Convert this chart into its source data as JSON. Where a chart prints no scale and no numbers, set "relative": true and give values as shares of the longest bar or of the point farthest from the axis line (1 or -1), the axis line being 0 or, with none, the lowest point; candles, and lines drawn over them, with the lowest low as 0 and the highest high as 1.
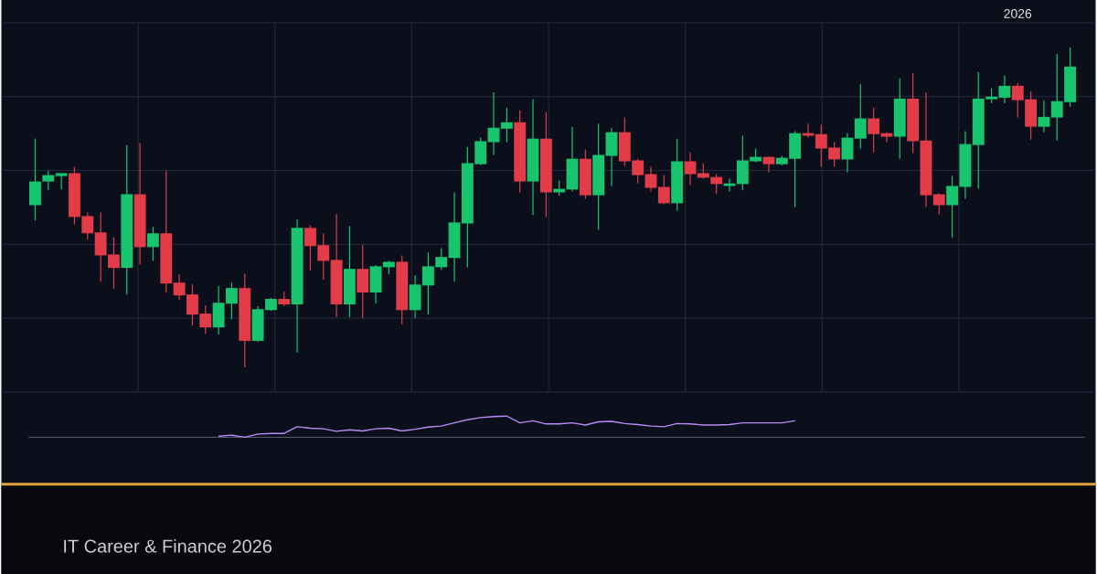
{
  "chart_data": [
    {
      "type": "candlestick",
      "relative": true,
      "grid": true,
      "categories": [
        null,
        null,
        null,
        null,
        null,
        null,
        null,
        null,
        null,
        null,
        null,
        null,
        null,
        null,
        null,
        null,
        null,
        null,
        null,
        null,
        null,
        null,
        null,
        null,
        null,
        null,
        null,
        null,
        null,
        null,
        null,
        null,
        null,
        null,
        null,
        null,
        null,
        null,
        null,
        null,
        null,
        null,
        null,
        null,
        null,
        null,
        null,
        null,
        null,
        null,
        null,
        null,
        null,
        null,
        null,
        null,
        null,
        null,
        null,
        null,
        null,
        null,
        null,
        null,
        null,
        null,
        null,
        null,
        null,
        null,
        null,
        null,
        null,
        null,
        null,
        "2026",
        null,
        null,
        null,
        null
      ],
      "ohlc": [
        [
          0.507,
          0.715,
          0.459,
          0.581
        ],
        [
          0.581,
          0.615,
          0.553,
          0.601
        ],
        [
          0.598,
          0.607,
          0.556,
          0.607
        ],
        [
          0.607,
          0.627,
          0.447,
          0.47
        ],
        [
          0.473,
          0.484,
          0.399,
          0.419
        ],
        [
          0.422,
          0.484,
          0.268,
          0.35
        ],
        [
          0.353,
          0.407,
          0.245,
          0.311
        ],
        [
          0.311,
          0.695,
          0.228,
          0.541
        ],
        [
          0.541,
          0.701,
          0.322,
          0.376
        ],
        [
          0.376,
          0.439,
          0.333,
          0.419
        ],
        [
          0.419,
          0.615,
          0.234,
          0.262
        ],
        [
          0.265,
          0.291,
          0.211,
          0.225
        ],
        [
          0.228,
          0.259,
          0.131,
          0.165
        ],
        [
          0.168,
          0.194,
          0.105,
          0.125
        ],
        [
          0.125,
          0.254,
          0.103,
          0.202
        ],
        [
          0.199,
          0.265,
          0.151,
          0.248
        ],
        [
          0.248,
          0.293,
          0.0,
          0.083
        ],
        [
          0.083,
          0.191,
          0.08,
          0.182
        ],
        [
          0.179,
          0.217,
          0.177,
          0.214
        ],
        [
          0.214,
          0.236,
          0.191,
          0.197
        ],
        [
          0.197,
          0.462,
          0.046,
          0.436
        ],
        [
          0.436,
          0.444,
          0.302,
          0.379
        ],
        [
          0.382,
          0.419,
          0.274,
          0.333
        ],
        [
          0.336,
          0.479,
          0.157,
          0.197
        ],
        [
          0.197,
          0.442,
          0.157,
          0.308
        ],
        [
          0.308,
          0.382,
          0.154,
          0.234
        ],
        [
          0.234,
          0.319,
          0.199,
          0.316
        ],
        [
          0.313,
          0.333,
          0.291,
          0.33
        ],
        [
          0.33,
          0.35,
          0.134,
          0.179
        ],
        [
          0.179,
          0.288,
          0.154,
          0.259
        ],
        [
          0.256,
          0.359,
          0.165,
          0.316
        ],
        [
          0.313,
          0.373,
          0.305,
          0.345
        ],
        [
          0.342,
          0.547,
          0.268,
          0.453
        ],
        [
          0.45,
          0.689,
          0.313,
          0.638
        ],
        [
          0.635,
          0.718,
          0.632,
          0.707
        ],
        [
          0.704,
          0.86,
          0.664,
          0.749
        ],
        [
          0.746,
          0.812,
          0.704,
          0.766
        ],
        [
          0.766,
          0.803,
          0.547,
          0.581
        ],
        [
          0.581,
          0.838,
          0.476,
          0.715
        ],
        [
          0.715,
          0.798,
          0.47,
          0.547
        ],
        [
          0.547,
          0.584,
          0.536,
          0.558
        ],
        [
          0.556,
          0.752,
          0.55,
          0.652
        ],
        [
          0.652,
          0.681,
          0.527,
          0.538
        ],
        [
          0.538,
          0.761,
          0.43,
          0.664
        ],
        [
          0.661,
          0.749,
          0.567,
          0.735
        ],
        [
          0.735,
          0.781,
          0.63,
          0.644
        ],
        [
          0.647,
          0.652,
          0.575,
          0.601
        ],
        [
          0.604,
          0.627,
          0.55,
          0.561
        ],
        [
          0.564,
          0.601,
          0.51,
          0.513
        ],
        [
          0.513,
          0.715,
          0.49,
          0.644
        ],
        [
          0.644,
          0.672,
          0.57,
          0.604
        ],
        [
          0.607,
          0.638,
          0.59,
          0.593
        ],
        [
          0.595,
          0.604,
          0.541,
          0.573
        ],
        [
          0.567,
          0.59,
          0.55,
          0.575
        ],
        [
          0.573,
          0.724,
          0.553,
          0.647
        ],
        [
          0.644,
          0.684,
          0.641,
          0.658
        ],
        [
          0.658,
          0.658,
          0.61,
          0.635
        ],
        [
          0.635,
          0.661,
          0.632,
          0.655
        ],
        [
          0.652,
          0.738,
          0.501,
          0.732
        ],
        [
          0.732,
          0.761,
          0.718,
          0.724
        ],
        [
          0.729,
          0.758,
          0.627,
          0.684
        ],
        [
          0.687,
          0.704,
          0.627,
          0.65
        ],
        [
          0.65,
          0.732,
          0.61,
          0.718
        ],
        [
          0.715,
          0.886,
          0.684,
          0.778
        ],
        [
          0.778,
          0.812,
          0.672,
          0.729
        ],
        [
          0.732,
          0.735,
          0.704,
          0.721
        ],
        [
          0.721,
          0.903,
          0.652,
          0.84
        ],
        [
          0.84,
          0.92,
          0.67,
          0.707
        ],
        [
          0.709,
          0.86,
          0.501,
          0.538
        ],
        [
          0.541,
          0.544,
          0.479,
          0.507
        ],
        [
          0.507,
          0.598,
          0.405,
          0.567
        ],
        [
          0.564,
          0.738,
          0.527,
          0.698
        ],
        [
          0.695,
          0.923,
          0.558,
          0.84
        ],
        [
          0.838,
          0.872,
          0.826,
          0.846
        ],
        [
          0.843,
          0.912,
          0.826,
          0.88
        ],
        [
          0.88,
          0.889,
          0.781,
          0.835
        ],
        [
          0.838,
          0.863,
          0.712,
          0.752
        ],
        [
          0.752,
          0.835,
          0.735,
          0.783
        ],
        [
          0.781,
          0.98,
          0.709,
          0.832
        ],
        [
          0.829,
          1.0,
          0.815,
          0.94
        ]
      ],
      "annotations": [
        "IT Career & Finance 2026"
      ]
    },
    {
      "type": "line",
      "relative": true,
      "categories": [
        null,
        null,
        null,
        null,
        null,
        null,
        null,
        null,
        null,
        null,
        null,
        null,
        null,
        null,
        null,
        null,
        null,
        null,
        null,
        null,
        null,
        null,
        null,
        null,
        null,
        null,
        null,
        null,
        null,
        null,
        null,
        null,
        null,
        null,
        null,
        null,
        null,
        null,
        null,
        null,
        null,
        null,
        null,
        null,
        null,
        null,
        null,
        null,
        null,
        null,
        null,
        null,
        null,
        null,
        null,
        null,
        null,
        null,
        null,
        null,
        null,
        null,
        null,
        null,
        null,
        null,
        null,
        null,
        null,
        null,
        null,
        null,
        null,
        null,
        null,
        null,
        null,
        null,
        null,
        null
      ],
      "series": [
        {
          "color": "#b98cf5",
          "values": [
            null,
            null,
            null,
            null,
            null,
            null,
            null,
            null,
            null,
            null,
            null,
            null,
            null,
            null,
            0.05,
            0.1,
            0.0,
            0.15,
            0.18,
            0.18,
            0.5,
            0.43,
            0.4,
            0.28,
            0.35,
            0.3,
            0.4,
            0.43,
            0.3,
            0.38,
            0.48,
            0.53,
            0.68,
            0.83,
            0.93,
            0.98,
            1.0,
            0.68,
            0.78,
            0.63,
            0.63,
            0.68,
            0.58,
            0.73,
            0.75,
            0.65,
            0.6,
            0.53,
            0.5,
            0.65,
            0.63,
            0.58,
            0.58,
            0.6,
            0.68,
            0.68,
            0.68,
            0.68,
            0.78,
            null,
            null,
            null,
            null,
            null,
            null,
            null,
            null,
            null,
            null,
            null,
            null,
            null,
            null,
            null,
            null,
            null,
            null,
            null,
            null,
            null
          ]
        }
      ]
    }
  ]
}
